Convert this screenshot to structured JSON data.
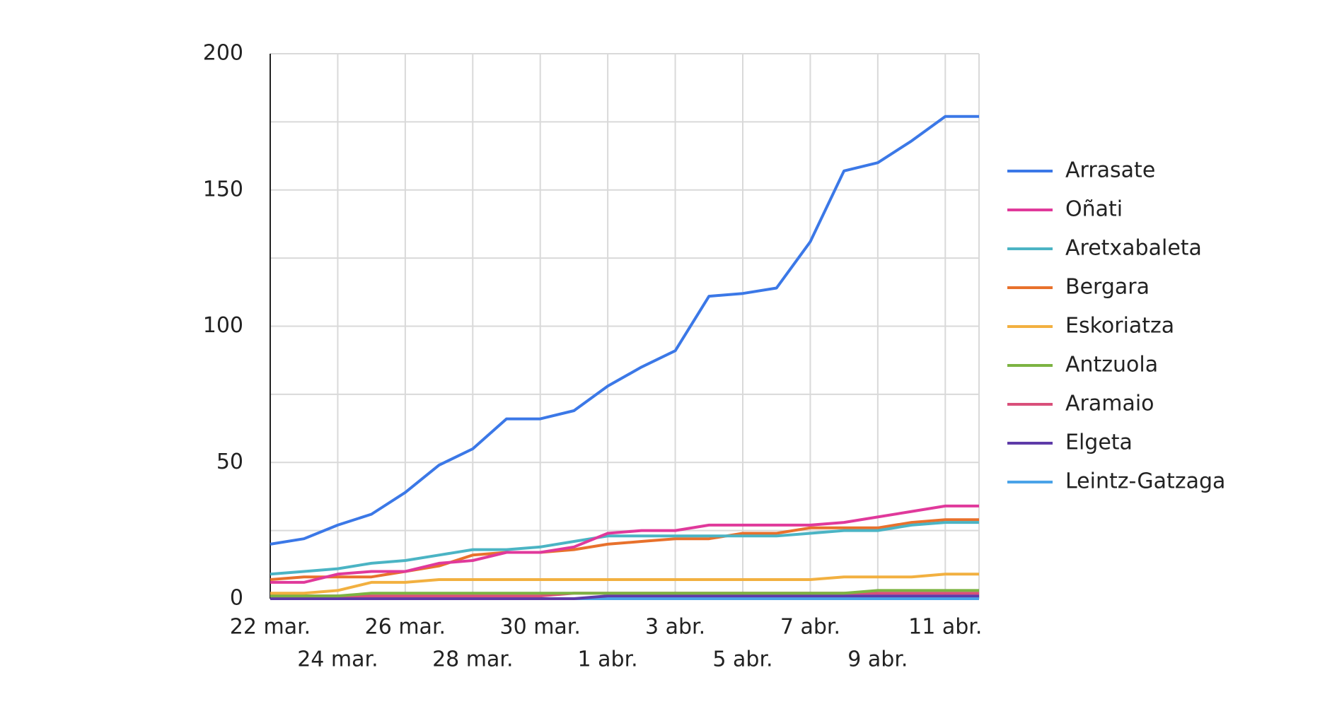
{
  "chart_data": {
    "type": "line",
    "categories": [
      "22 mar.",
      null,
      "24 mar.",
      null,
      "26 mar.",
      null,
      "28 mar.",
      null,
      "30 mar.",
      null,
      "1 abr.",
      null,
      "3 abr.",
      null,
      "5 abr.",
      null,
      "7 abr.",
      null,
      "9 abr.",
      null,
      "11 abr.",
      null
    ],
    "series": [
      {
        "name": "Arrasate",
        "color": "#3b78e7",
        "values": [
          20,
          22,
          27,
          31,
          39,
          49,
          55,
          66,
          66,
          69,
          78,
          85,
          91,
          111,
          112,
          114,
          131,
          157,
          160,
          168,
          177,
          177
        ]
      },
      {
        "name": "Oñati",
        "color": "#e0399b",
        "values": [
          6,
          6,
          9,
          10,
          10,
          13,
          14,
          17,
          17,
          19,
          24,
          25,
          25,
          27,
          27,
          27,
          27,
          28,
          30,
          32,
          34,
          34
        ]
      },
      {
        "name": "Aretxabaleta",
        "color": "#4bb4c4",
        "values": [
          9,
          10,
          11,
          13,
          14,
          16,
          18,
          18,
          19,
          21,
          23,
          23,
          23,
          23,
          23,
          23,
          24,
          25,
          25,
          27,
          28,
          28
        ]
      },
      {
        "name": "Bergara",
        "color": "#e8712c",
        "values": [
          7,
          8,
          8,
          8,
          10,
          12,
          16,
          17,
          17,
          18,
          20,
          21,
          22,
          22,
          24,
          24,
          26,
          26,
          26,
          28,
          29,
          29
        ]
      },
      {
        "name": "Eskoriatza",
        "color": "#f2b040",
        "values": [
          2,
          2,
          3,
          6,
          6,
          7,
          7,
          7,
          7,
          7,
          7,
          7,
          7,
          7,
          7,
          7,
          7,
          8,
          8,
          8,
          9,
          9
        ]
      },
      {
        "name": "Antzuola",
        "color": "#7cb342",
        "values": [
          1,
          1,
          1,
          2,
          2,
          2,
          2,
          2,
          2,
          2,
          2,
          2,
          2,
          2,
          2,
          2,
          2,
          2,
          3,
          3,
          3,
          3
        ]
      },
      {
        "name": "Aramaio",
        "color": "#d9507a",
        "values": [
          1,
          1,
          1,
          1,
          1,
          1,
          1,
          1,
          1,
          2,
          2,
          2,
          2,
          2,
          2,
          2,
          2,
          2,
          2,
          2,
          2,
          2
        ]
      },
      {
        "name": "Elgeta",
        "color": "#5e3ba8",
        "values": [
          0,
          0,
          0,
          0,
          0,
          0,
          0,
          0,
          0,
          0,
          1,
          1,
          1,
          1,
          1,
          1,
          1,
          1,
          1,
          1,
          1,
          1
        ]
      },
      {
        "name": "Leintz-Gatzaga",
        "color": "#4aa3e8",
        "values": [
          0,
          0,
          0,
          0,
          0,
          0,
          0,
          0,
          0,
          0,
          0,
          0,
          0,
          0,
          0,
          0,
          0,
          0,
          0,
          0,
          0,
          0
        ]
      }
    ],
    "ylim": [
      0,
      200
    ],
    "yticks": [
      0,
      50,
      100,
      150,
      200
    ],
    "grid": true,
    "legend": "right"
  }
}
